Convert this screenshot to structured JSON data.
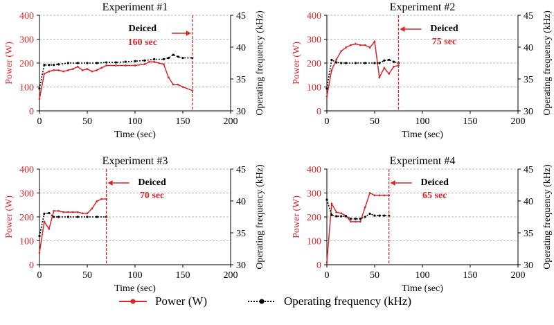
{
  "chart_data": [
    {
      "type": "line",
      "title": "Experiment #1",
      "xlabel": "Time (sec)",
      "ylabel": "Power (W)",
      "y2label": "Operating frequency (kHz)",
      "xlim": [
        0,
        200
      ],
      "ylim": [
        0,
        400
      ],
      "y2lim": [
        30,
        45
      ],
      "xticks": [
        "0",
        "50",
        "100",
        "150",
        "200"
      ],
      "yticks": [
        "0",
        "100",
        "200",
        "300",
        "400"
      ],
      "y2ticks": [
        "30",
        "35",
        "40",
        "45"
      ],
      "grid": true,
      "deiced_time": 160,
      "annotation": {
        "label": "Deiced",
        "value": "160 sec",
        "side": "left"
      },
      "series": [
        {
          "name": "Power (W)",
          "axis": "left",
          "color": "#d9262b",
          "x": [
            0,
            5,
            10,
            15,
            20,
            25,
            30,
            35,
            40,
            45,
            50,
            55,
            60,
            65,
            70,
            80,
            90,
            100,
            110,
            115,
            120,
            125,
            130,
            135,
            140,
            145,
            150,
            160
          ],
          "values": [
            50,
            155,
            165,
            170,
            170,
            165,
            170,
            175,
            185,
            170,
            175,
            165,
            170,
            180,
            190,
            190,
            190,
            190,
            195,
            205,
            205,
            200,
            195,
            140,
            110,
            110,
            100,
            85
          ]
        },
        {
          "name": "Operating frequency (kHz)",
          "axis": "right",
          "color": "#000000",
          "x": [
            0,
            5,
            10,
            15,
            20,
            30,
            40,
            50,
            60,
            70,
            80,
            90,
            100,
            110,
            120,
            130,
            135,
            140,
            145,
            150,
            160
          ],
          "values": [
            33.5,
            37.2,
            37.2,
            37.2,
            37.3,
            37.5,
            37.5,
            37.5,
            37.5,
            37.6,
            37.6,
            37.7,
            37.8,
            37.9,
            38.1,
            38.1,
            38.3,
            38.8,
            38.5,
            38.3,
            38.3
          ]
        }
      ]
    },
    {
      "type": "line",
      "title": "Experiment #2",
      "xlabel": "Time (sec)",
      "ylabel": "Power (W)",
      "y2label": "Operating frequency (kHz)",
      "xlim": [
        0,
        200
      ],
      "ylim": [
        0,
        400
      ],
      "y2lim": [
        30,
        45
      ],
      "xticks": [
        "0",
        "50",
        "100",
        "150",
        "200"
      ],
      "yticks": [
        "0",
        "100",
        "200",
        "300",
        "400"
      ],
      "y2ticks": [
        "30",
        "35",
        "40",
        "45"
      ],
      "grid": true,
      "deiced_time": 75,
      "annotation": {
        "label": "Deiced",
        "value": "75 sec",
        "side": "right"
      },
      "series": [
        {
          "name": "Power (W)",
          "axis": "left",
          "color": "#d9262b",
          "x": [
            0,
            5,
            10,
            15,
            20,
            25,
            30,
            35,
            40,
            45,
            50,
            55,
            60,
            65,
            70,
            75
          ],
          "values": [
            60,
            170,
            215,
            250,
            265,
            275,
            280,
            275,
            275,
            265,
            290,
            140,
            180,
            155,
            185,
            190
          ]
        },
        {
          "name": "Operating frequency (kHz)",
          "axis": "right",
          "color": "#000000",
          "x": [
            0,
            5,
            10,
            15,
            20,
            30,
            40,
            50,
            55,
            60,
            65,
            70,
            75
          ],
          "values": [
            33.5,
            38.0,
            37.6,
            37.5,
            37.5,
            37.5,
            37.5,
            37.5,
            37.5,
            37.9,
            38.0,
            37.7,
            37.5
          ]
        }
      ]
    },
    {
      "type": "line",
      "title": "Experiment #3",
      "xlabel": "Time (sec)",
      "ylabel": "Power (W)",
      "y2label": "Operating frequency (kHz)",
      "xlim": [
        0,
        200
      ],
      "ylim": [
        0,
        400
      ],
      "y2lim": [
        30,
        45
      ],
      "xticks": [
        "0",
        "50",
        "100",
        "150",
        "200"
      ],
      "yticks": [
        "0",
        "100",
        "200",
        "300",
        "400"
      ],
      "y2ticks": [
        "30",
        "35",
        "40",
        "45"
      ],
      "grid": true,
      "deiced_time": 70,
      "annotation": {
        "label": "Deiced",
        "value": "70 sec",
        "side": "right"
      },
      "series": [
        {
          "name": "Power (W)",
          "axis": "left",
          "color": "#d9262b",
          "x": [
            0,
            5,
            10,
            15,
            20,
            25,
            30,
            35,
            40,
            45,
            50,
            55,
            60,
            65,
            70
          ],
          "values": [
            50,
            180,
            150,
            225,
            225,
            220,
            220,
            220,
            220,
            215,
            215,
            235,
            265,
            275,
            275
          ]
        },
        {
          "name": "Operating frequency (kHz)",
          "axis": "right",
          "color": "#000000",
          "x": [
            0,
            5,
            10,
            15,
            20,
            30,
            40,
            50,
            60,
            70
          ],
          "values": [
            34.5,
            38.0,
            38.1,
            37.5,
            37.5,
            37.5,
            37.5,
            37.5,
            37.5,
            37.5
          ]
        }
      ]
    },
    {
      "type": "line",
      "title": "Experiment #4",
      "xlabel": "Time (sec)",
      "ylabel": "Power (W)",
      "y2label": "Operating frequency (kHz)",
      "xlim": [
        0,
        200
      ],
      "ylim": [
        0,
        400
      ],
      "y2lim": [
        30,
        45
      ],
      "xticks": [
        "0",
        "50",
        "100",
        "150",
        "200"
      ],
      "yticks": [
        "0",
        "100",
        "200",
        "300",
        "400"
      ],
      "y2ticks": [
        "30",
        "35",
        "40",
        "45"
      ],
      "grid": true,
      "deiced_time": 65,
      "annotation": {
        "label": "Deiced",
        "value": "65 sec",
        "side": "right"
      },
      "series": [
        {
          "name": "Power (W)",
          "axis": "left",
          "color": "#d9262b",
          "x": [
            0,
            5,
            10,
            15,
            20,
            25,
            30,
            35,
            40,
            45,
            50,
            55,
            60,
            65
          ],
          "values": [
            10,
            255,
            220,
            215,
            205,
            180,
            180,
            180,
            240,
            300,
            290,
            290,
            290,
            290
          ]
        },
        {
          "name": "Operating frequency (kHz)",
          "axis": "right",
          "color": "#000000",
          "x": [
            0,
            5,
            10,
            15,
            20,
            25,
            30,
            35,
            40,
            45,
            50,
            55,
            60,
            65
          ],
          "values": [
            40.2,
            37.8,
            37.6,
            37.6,
            37.6,
            37.2,
            37.2,
            37.2,
            37.5,
            38.0,
            37.7,
            37.7,
            37.7,
            37.7
          ]
        }
      ]
    }
  ],
  "legend": {
    "power_label": "Power (W)",
    "frequency_label": "Operating frequency (kHz)"
  },
  "colors": {
    "power": "#d9262b",
    "frequency": "#000000",
    "grid": "#b8b8b8",
    "deiced_text": "#000000"
  }
}
